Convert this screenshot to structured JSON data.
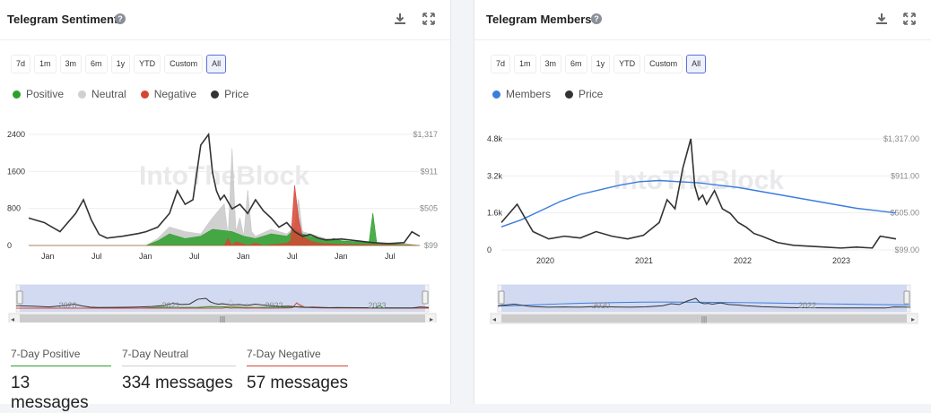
{
  "sentiment": {
    "title": "Telegram Sentiment",
    "ranges": [
      "7d",
      "1m",
      "3m",
      "6m",
      "1y",
      "YTD",
      "Custom",
      "All"
    ],
    "active_range": "All",
    "legend": [
      {
        "label": "Positive",
        "color": "#2ca02c"
      },
      {
        "label": "Neutral",
        "color": "#d0d0d0"
      },
      {
        "label": "Negative",
        "color": "#d64532"
      },
      {
        "label": "Price",
        "color": "#333333"
      }
    ],
    "watermark": "IntoTheBlock",
    "stats": [
      {
        "label": "7-Day Positive",
        "value": "13 messages",
        "color": "#2ca02c"
      },
      {
        "label": "7-Day Neutral",
        "value": "334 messages",
        "color": "#cfcfcf"
      },
      {
        "label": "7-Day Negative",
        "value": "57 messages",
        "color": "#d64532"
      }
    ]
  },
  "members": {
    "title": "Telegram Members",
    "ranges": [
      "7d",
      "1m",
      "3m",
      "6m",
      "1y",
      "YTD",
      "Custom",
      "All"
    ],
    "active_range": "All",
    "legend": [
      {
        "label": "Members",
        "color": "#3b7ddd"
      },
      {
        "label": "Price",
        "color": "#333333"
      }
    ],
    "watermark": "IntoTheBlock"
  },
  "chart_data": [
    {
      "type": "area",
      "x_ticks": [
        "Jan",
        "Jul",
        "Jan",
        "Jul",
        "Jan",
        "Jul",
        "Jan",
        "Jul"
      ],
      "navigator_labels": [
        "2020",
        "2021",
        "2022",
        "2023"
      ],
      "y_left_ticks": [
        "0",
        "800",
        "1600",
        "2400"
      ],
      "y_left_values": [
        0,
        800,
        1600,
        2400
      ],
      "ylim_left": [
        0,
        2400
      ],
      "y_right_ticks": [
        "$99",
        "$505",
        "$911",
        "$1,317"
      ],
      "y_right_values": [
        99,
        505,
        911,
        1317
      ],
      "ylim_right": [
        99,
        1317
      ],
      "xlim": [
        0,
        100
      ],
      "series": [
        {
          "name": "Neutral",
          "color": "#c8c8c8",
          "x": [
            0,
            30,
            33,
            36,
            40,
            44,
            47,
            50,
            51,
            52,
            53,
            54,
            55,
            56,
            57,
            58,
            62,
            66,
            68,
            69,
            70,
            72,
            74,
            76,
            80,
            84,
            90,
            96,
            100
          ],
          "values": [
            0,
            0,
            150,
            400,
            300,
            250,
            600,
            900,
            200,
            2100,
            300,
            600,
            200,
            1200,
            300,
            200,
            350,
            250,
            400,
            1000,
            300,
            250,
            200,
            150,
            100,
            80,
            60,
            50,
            0
          ]
        },
        {
          "name": "Positive",
          "color": "#2ca02c",
          "x": [
            0,
            30,
            33,
            36,
            40,
            44,
            47,
            52,
            55,
            58,
            62,
            66,
            68,
            70,
            72,
            74,
            76,
            78,
            80,
            84,
            87,
            88,
            89,
            90,
            94,
            100
          ],
          "values": [
            0,
            0,
            100,
            250,
            150,
            200,
            350,
            300,
            200,
            150,
            250,
            200,
            350,
            250,
            200,
            150,
            100,
            150,
            100,
            80,
            50,
            700,
            50,
            40,
            30,
            0
          ]
        },
        {
          "name": "Negative",
          "color": "#d64532",
          "x": [
            0,
            50,
            51,
            52,
            53,
            56,
            58,
            60,
            64,
            66,
            67,
            68,
            69,
            70,
            72,
            74,
            80,
            100
          ],
          "values": [
            0,
            0,
            150,
            0,
            80,
            0,
            50,
            0,
            30,
            50,
            100,
            1300,
            600,
            200,
            100,
            50,
            20,
            0
          ]
        },
        {
          "name": "Price",
          "color": "#333333",
          "axis": "right",
          "x": [
            0,
            4,
            8,
            12,
            14,
            16,
            18,
            20,
            24,
            28,
            30,
            33,
            36,
            38,
            40,
            42,
            44,
            46,
            47,
            48,
            49,
            50,
            52,
            54,
            56,
            58,
            60,
            62,
            64,
            66,
            68,
            70,
            72,
            74,
            76,
            80,
            84,
            88,
            92,
            96,
            98,
            100
          ],
          "values": [
            400,
            350,
            250,
            450,
            600,
            380,
            220,
            180,
            200,
            230,
            250,
            300,
            450,
            700,
            550,
            600,
            1200,
            1317,
            900,
            700,
            600,
            650,
            500,
            550,
            450,
            600,
            480,
            400,
            300,
            350,
            250,
            200,
            220,
            180,
            160,
            170,
            150,
            130,
            120,
            130,
            250,
            200
          ]
        }
      ]
    },
    {
      "type": "line",
      "x_ticks": [
        "2020",
        "2021",
        "2022",
        "2023"
      ],
      "navigator_labels": [
        "2020",
        "2022"
      ],
      "y_left_ticks": [
        "0",
        "1.6k",
        "3.2k",
        "4.8k"
      ],
      "y_left_values": [
        0,
        1600,
        3200,
        4800
      ],
      "ylim_left": [
        0,
        4800
      ],
      "y_right_ticks": [
        "$99.00",
        "$505.00",
        "$911.00",
        "$1,317.00"
      ],
      "y_right_values": [
        99,
        505,
        911,
        1317
      ],
      "ylim_right": [
        99,
        1317
      ],
      "xlim": [
        0,
        100
      ],
      "series": [
        {
          "name": "Members",
          "color": "#3b7ddd",
          "x": [
            0,
            5,
            10,
            15,
            20,
            25,
            30,
            35,
            40,
            45,
            50,
            55,
            60,
            65,
            70,
            75,
            80,
            85,
            90,
            95,
            100
          ],
          "values": [
            1000,
            1300,
            1700,
            2100,
            2400,
            2600,
            2800,
            2950,
            3000,
            2950,
            2900,
            2800,
            2700,
            2550,
            2400,
            2250,
            2100,
            1950,
            1800,
            1700,
            1600
          ]
        },
        {
          "name": "Price",
          "color": "#333333",
          "axis": "right",
          "x": [
            0,
            4,
            8,
            12,
            16,
            20,
            24,
            28,
            32,
            36,
            40,
            42,
            44,
            46,
            48,
            49,
            50,
            51,
            52,
            54,
            56,
            58,
            60,
            62,
            64,
            66,
            70,
            74,
            78,
            82,
            86,
            90,
            94,
            96,
            100
          ],
          "values": [
            400,
            600,
            300,
            220,
            250,
            230,
            300,
            250,
            220,
            260,
            400,
            650,
            550,
            1000,
            1317,
            800,
            650,
            700,
            600,
            750,
            550,
            500,
            400,
            350,
            280,
            250,
            180,
            150,
            140,
            130,
            120,
            130,
            120,
            250,
            220
          ]
        }
      ]
    }
  ]
}
